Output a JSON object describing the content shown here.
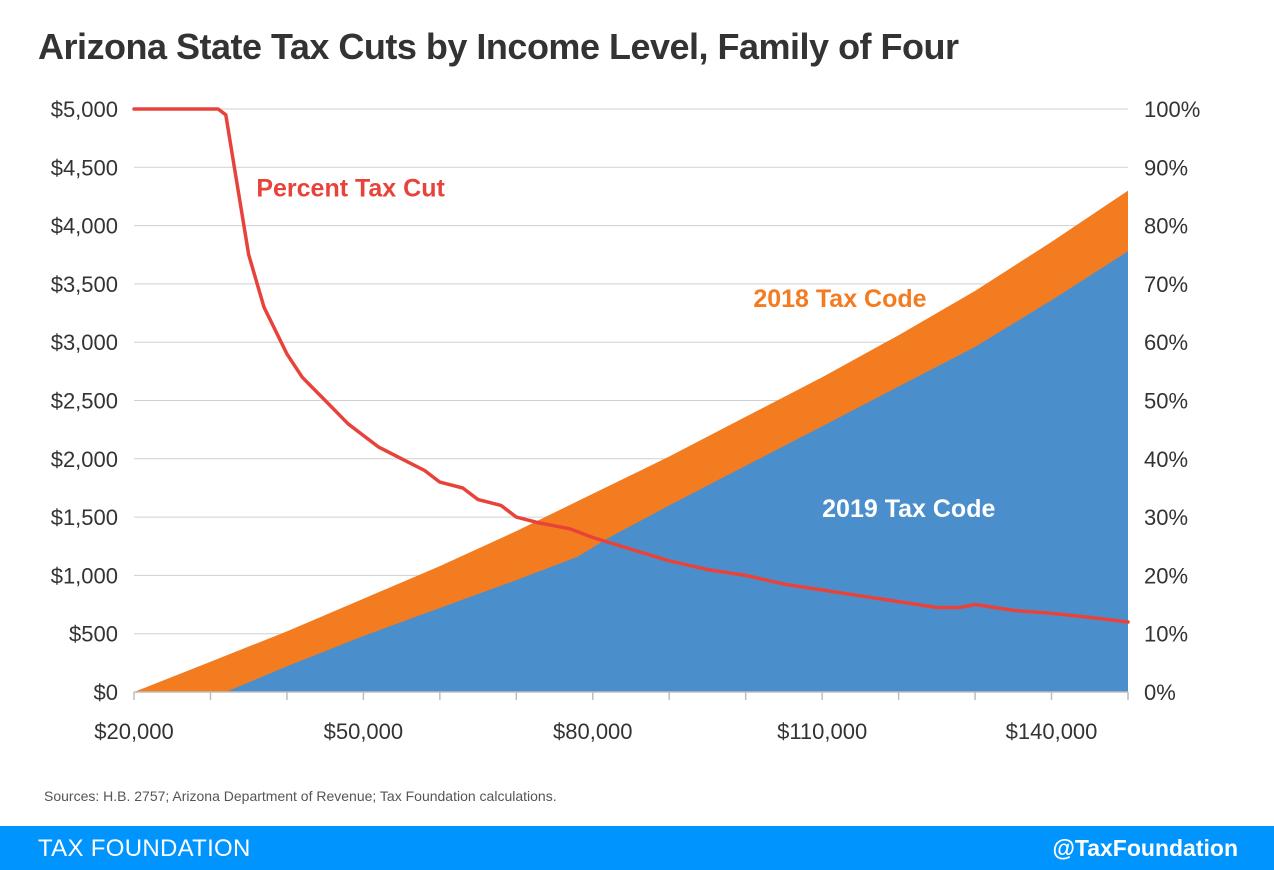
{
  "title": "Arizona State Tax Cuts by Income Level, Family of Four",
  "source": "Sources: H.B. 2757; Arizona Department of Revenue; Tax Foundation calculations.",
  "footer": {
    "brand": "TAX FOUNDATION",
    "handle": "@TaxFoundation",
    "color": "#0094ff"
  },
  "chart_data": {
    "type": "area",
    "x_ticks": [
      "$20,000",
      "$50,000",
      "$80,000",
      "$110,000",
      "$140,000"
    ],
    "x_tick_values": [
      20000,
      50000,
      80000,
      110000,
      140000
    ],
    "xlim": [
      20000,
      150000
    ],
    "y_left_ticks": [
      "$0",
      "$500",
      "$1,000",
      "$1,500",
      "$2,000",
      "$2,500",
      "$3,000",
      "$3,500",
      "$4,000",
      "$4,500",
      "$5,000"
    ],
    "y_left_tick_values": [
      0,
      500,
      1000,
      1500,
      2000,
      2500,
      3000,
      3500,
      4000,
      4500,
      5000
    ],
    "ylim_left": [
      0,
      5000
    ],
    "y_right_ticks": [
      "0%",
      "10%",
      "20%",
      "30%",
      "40%",
      "50%",
      "60%",
      "70%",
      "80%",
      "90%",
      "100%"
    ],
    "y_right_tick_values": [
      0,
      10,
      20,
      30,
      40,
      50,
      60,
      70,
      80,
      90,
      100
    ],
    "ylim_right": [
      0,
      100
    ],
    "grid": true,
    "series": [
      {
        "name": "2018 Tax Code",
        "axis": "left",
        "kind": "area",
        "color": "#f47c20",
        "x": [
          20000,
          30000,
          40000,
          50000,
          60000,
          70000,
          80000,
          90000,
          100000,
          110000,
          120000,
          130000,
          140000,
          150000
        ],
        "values": [
          0,
          260,
          520,
          800,
          1080,
          1380,
          1700,
          2020,
          2360,
          2700,
          3060,
          3440,
          3860,
          4300
        ]
      },
      {
        "name": "2019 Tax Code",
        "axis": "left",
        "kind": "area",
        "color": "#4a8fcb",
        "x": [
          32000,
          40000,
          50000,
          60000,
          70000,
          78000,
          82000,
          90000,
          100000,
          110000,
          120000,
          130000,
          140000,
          150000
        ],
        "values": [
          0,
          220,
          480,
          720,
          960,
          1160,
          1320,
          1600,
          1940,
          2280,
          2620,
          2960,
          3360,
          3780
        ]
      },
      {
        "name": "Percent Tax Cut",
        "axis": "right",
        "kind": "line",
        "color": "#e8433a",
        "x": [
          20000,
          31000,
          32000,
          33000,
          35000,
          37000,
          40000,
          42000,
          45000,
          48000,
          50000,
          52000,
          55000,
          58000,
          60000,
          63000,
          65000,
          68000,
          70000,
          73000,
          75000,
          77000,
          80000,
          85000,
          90000,
          95000,
          100000,
          105000,
          110000,
          115000,
          120000,
          125000,
          128000,
          130000,
          135000,
          140000,
          145000,
          150000
        ],
        "values": [
          100,
          100,
          99,
          91,
          75,
          66,
          58,
          54,
          50,
          46,
          44,
          42,
          40,
          38,
          36,
          35,
          33,
          32,
          30,
          29,
          28.5,
          28,
          26.5,
          24.5,
          22.5,
          21,
          20,
          18.5,
          17.5,
          16.5,
          15.5,
          14.5,
          14.5,
          15,
          14,
          13.5,
          12.8,
          12
        ]
      }
    ],
    "annotations": [
      {
        "text": "Percent Tax Cut",
        "color": "#e8433a",
        "x": 36000,
        "y_left": 4250
      },
      {
        "text": "2018 Tax Code",
        "color": "#f47c20",
        "x": 101000,
        "y_left": 3300
      },
      {
        "text": "2019 Tax Code",
        "color": "#ffffff",
        "x": 110000,
        "y_left": 1500
      }
    ]
  }
}
